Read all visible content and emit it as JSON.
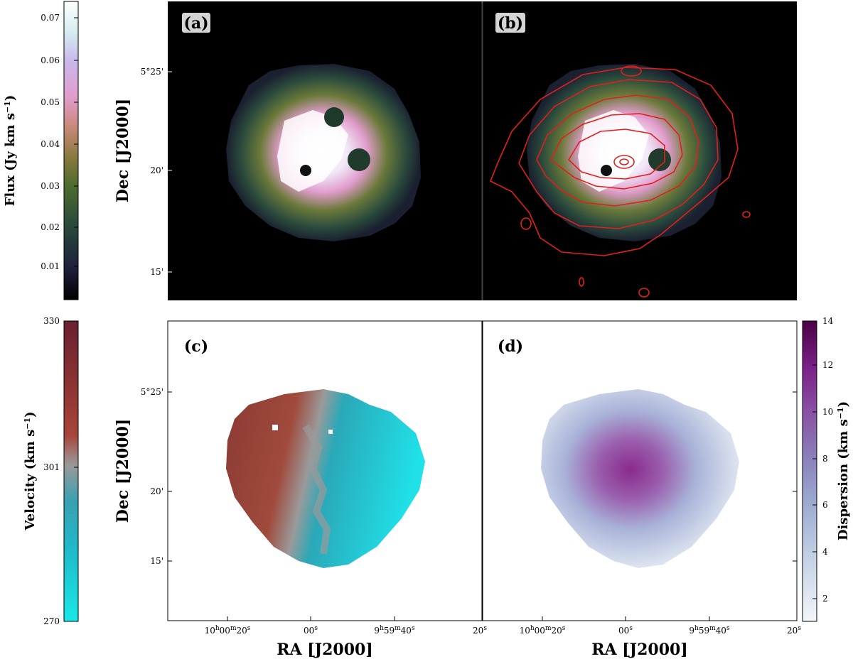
{
  "chart_data": [
    {
      "type": "heatmap",
      "panel": "(a)",
      "quantity": "Flux",
      "ylabel": "Dec [J2000]",
      "y_ticks": [
        "5°25'",
        "20'",
        "15'"
      ],
      "background": "#000000"
    },
    {
      "type": "heatmap",
      "panel": "(b)",
      "quantity": "Flux with contours",
      "contour_color": "#e0201b",
      "background": "#000000"
    },
    {
      "type": "heatmap",
      "panel": "(c)",
      "quantity": "Velocity",
      "ylabel": "Dec [J2000]",
      "xlabel": "RA [J2000]",
      "y_ticks": [
        "5°25'",
        "20'",
        "15'"
      ],
      "x_ticks": [
        "10h00m20s",
        "00s",
        "9h59m40s",
        "20s"
      ]
    },
    {
      "type": "heatmap",
      "panel": "(d)",
      "quantity": "Dispersion",
      "xlabel": "RA [J2000]",
      "x_ticks": [
        "10h00m20s",
        "00s",
        "9h59m40s",
        "20s"
      ]
    }
  ],
  "colorbars": {
    "flux": {
      "label": "Flux (Jy km s",
      "label_sup": "−1",
      "label_end": ")",
      "ticks": [
        "0.07",
        "0.06",
        "0.05",
        "0.04",
        "0.03",
        "0.02",
        "0.01"
      ],
      "range": [
        0.0,
        0.075
      ],
      "colors": [
        "#000000",
        "#1e1f3b",
        "#2a4a3c",
        "#4d6b2e",
        "#8a7a40",
        "#c88a7a",
        "#e19ccc",
        "#c9b8ec",
        "#d6eef0",
        "#ffffff"
      ]
    },
    "velocity": {
      "label": "Velocity (km s",
      "label_sup": "−1",
      "label_end": ")",
      "ticks": [
        "330",
        "301",
        "270"
      ],
      "range": [
        270,
        330
      ],
      "colors": [
        "#1ae8e8",
        "#20b8c8",
        "#3aa0b0",
        "#9a9a9a",
        "#a8453a",
        "#8a3232",
        "#6a2030"
      ]
    },
    "dispersion": {
      "label": "Dispersion (km s",
      "label_sup": "−1",
      "label_end": ")",
      "ticks": [
        "14",
        "12",
        "10",
        "8",
        "6",
        "4",
        "2"
      ],
      "range": [
        1,
        14
      ],
      "colors": [
        "#f3f6fa",
        "#c6d3e6",
        "#9ba9d0",
        "#8a7fb9",
        "#8a4fa3",
        "#7a1f86",
        "#4a0046"
      ]
    }
  },
  "panel_letters": {
    "a": "(a)",
    "b": "(b)",
    "c": "(c)",
    "d": "(d)"
  },
  "ra_ticks": {
    "t1": {
      "main": "10",
      "h": "h",
      "m_val": "00",
      "m": "m",
      "s_val": "20",
      "s": "s"
    },
    "t2": {
      "main": "00",
      "s": "s"
    },
    "t3": {
      "main": "9",
      "h": "h",
      "m_val": "59",
      "m": "m",
      "s_val": "40",
      "s": "s"
    },
    "t4": {
      "main": "20",
      "s": "s"
    }
  }
}
